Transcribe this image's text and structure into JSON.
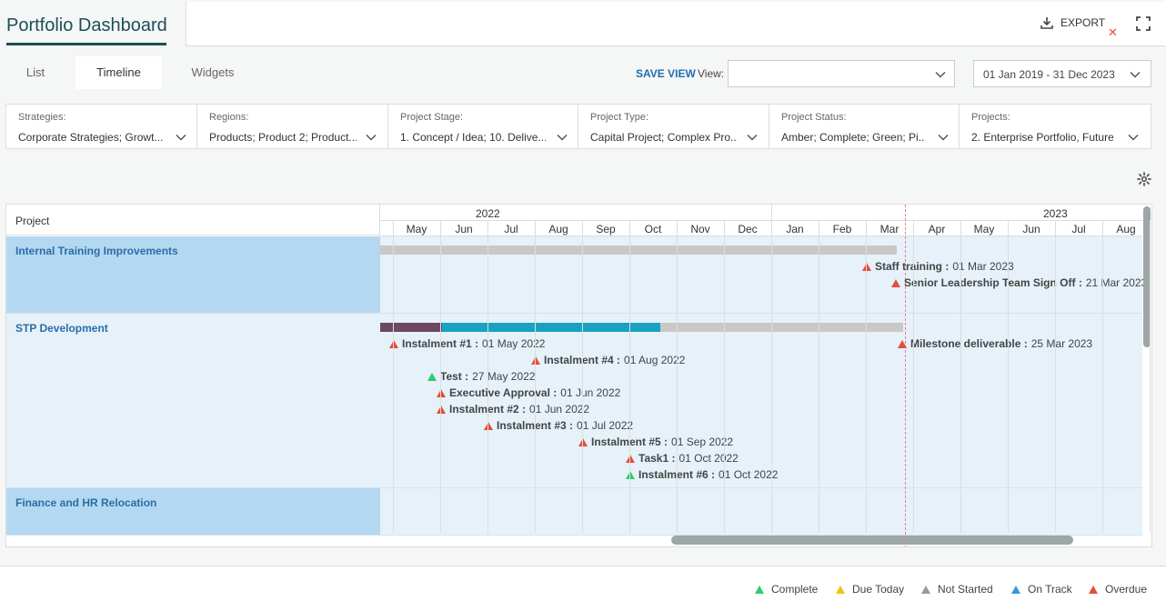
{
  "header": {
    "title": "Portfolio Dashboard",
    "export_label": "EXPORT"
  },
  "tabs": [
    {
      "label": "List"
    },
    {
      "label": "Timeline"
    },
    {
      "label": "Widgets"
    }
  ],
  "active_tab": "Timeline",
  "toolbar": {
    "save_view": "SAVE VIEW",
    "view_label": "View:",
    "view_value": "",
    "date_range": "01 Jan 2019 - 31 Dec 2023"
  },
  "filters": [
    {
      "label": "Strategies:",
      "value": "Corporate Strategies; Growt..."
    },
    {
      "label": "Regions:",
      "value": "Products; Product 2; Product..."
    },
    {
      "label": "Project Stage:",
      "value": "1. Concept / Idea; 10. Delive..."
    },
    {
      "label": "Project Type:",
      "value": "Capital Project; Complex Pro..."
    },
    {
      "label": "Project Status:",
      "value": "Amber; Complete; Green; Pi..."
    },
    {
      "label": "Projects:",
      "value": "2. Enterprise Portfolio, Future..."
    }
  ],
  "gantt": {
    "project_header": "Project",
    "years": [
      "2022",
      "2023"
    ],
    "months": [
      "May",
      "Jun",
      "Jul",
      "Aug",
      "Sep",
      "Oct",
      "Nov",
      "Dec",
      "Jan",
      "Feb",
      "Mar",
      "Apr",
      "May",
      "Jun",
      "Jul",
      "Aug"
    ],
    "projects": [
      {
        "name": "Internal Training Improvements",
        "milestones": [
          {
            "name": "Staff training :",
            "date": "01 Mar 2023",
            "status": "overdue"
          },
          {
            "name": "Senior Leadership Team Sign Off :",
            "date": "21 Mar 2023",
            "status": "overdue"
          }
        ]
      },
      {
        "name": "STP Development",
        "milestones": [
          {
            "name": "Instalment #1 :",
            "date": "01 May 2022",
            "status": "overdue"
          },
          {
            "name": "Milestone deliverable :",
            "date": "25 Mar 2023",
            "status": "overdue"
          },
          {
            "name": "Instalment #4 :",
            "date": "01 Aug 2022",
            "status": "overdue"
          },
          {
            "name": "Test :",
            "date": "27 May 2022",
            "status": "complete"
          },
          {
            "name": "Executive Approval :",
            "date": "01 Jun 2022",
            "status": "overdue"
          },
          {
            "name": "Instalment #2 :",
            "date": "01 Jun 2022",
            "status": "overdue"
          },
          {
            "name": "Instalment #3 :",
            "date": "01 Jul 2022",
            "status": "overdue"
          },
          {
            "name": "Instalment #5 :",
            "date": "01 Sep 2022",
            "status": "overdue"
          },
          {
            "name": "Task1 :",
            "date": "01 Oct 2022",
            "status": "overdue"
          },
          {
            "name": "Instalment #6 :",
            "date": "01 Oct 2022",
            "status": "complete"
          }
        ]
      },
      {
        "name": "Finance and HR Relocation",
        "milestones": []
      }
    ]
  },
  "legend": [
    {
      "label": "Complete",
      "color": "#2ecc71"
    },
    {
      "label": "Due Today",
      "color": "#f1c40f"
    },
    {
      "label": "Not Started",
      "color": "#999999"
    },
    {
      "label": "On Track",
      "color": "#3498db"
    },
    {
      "label": "Overdue",
      "color": "#e74c3c"
    }
  ],
  "colors": {
    "brand": "#1c4f54",
    "link": "#2a6da8",
    "row_highlight": "#b4d8f1",
    "bar_grey": "#c8c8c8",
    "bar_teal": "#17a2c1",
    "bar_plum": "#6d4860"
  }
}
